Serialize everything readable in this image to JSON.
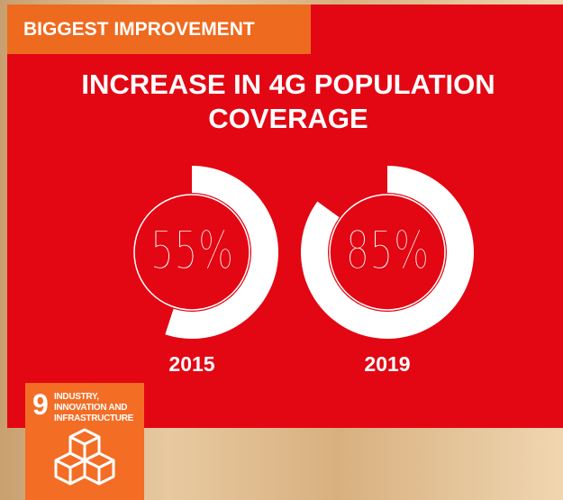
{
  "badge": "BIGGEST IMPROVEMENT",
  "chart_data": {
    "type": "donut",
    "title": "INCREASE IN 4G POPULATION COVERAGE",
    "categories": [
      "2015",
      "2019"
    ],
    "values": [
      55,
      85
    ],
    "value_labels": [
      "55%",
      "85%"
    ],
    "color": "#ffffff"
  },
  "sdg": {
    "number": "9",
    "label": "INDUSTRY, INNOVATION AND INFRASTRUCTURE"
  }
}
